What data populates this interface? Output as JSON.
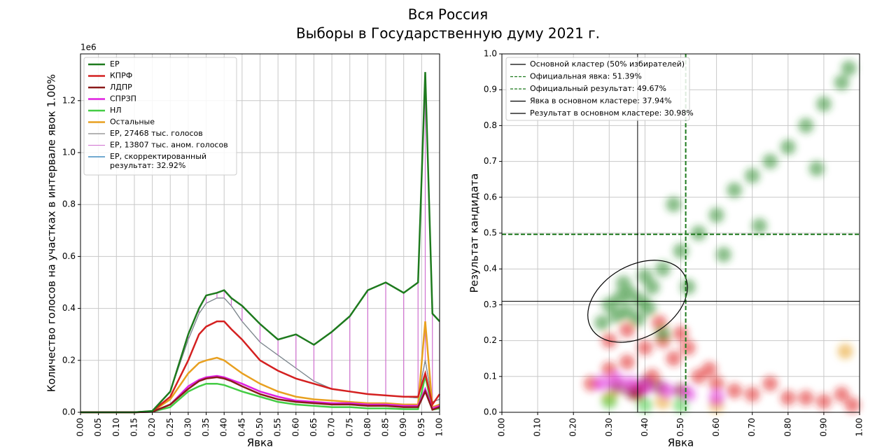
{
  "title": [
    "Вся Россия",
    "Выборы в Государственную думу 2021 г."
  ],
  "chart_data": [
    {
      "type": "line",
      "x_label": "Явка",
      "y_label": "Количество голосов на участках в интервале явок 1.00%",
      "y_offset_label": "1e6",
      "x": [
        0,
        0.05,
        0.1,
        0.15,
        0.2,
        0.25,
        0.3,
        0.33,
        0.35,
        0.38,
        0.4,
        0.42,
        0.45,
        0.5,
        0.55,
        0.6,
        0.65,
        0.7,
        0.75,
        0.8,
        0.85,
        0.9,
        0.94,
        0.96,
        0.98,
        1.0
      ],
      "xlim": [
        0,
        1
      ],
      "xticks": [
        {
          "value": 0,
          "label": "0.00"
        },
        {
          "value": 0.05,
          "label": "0.05"
        },
        {
          "value": 0.1,
          "label": "0.10"
        },
        {
          "value": 0.15,
          "label": "0.15"
        },
        {
          "value": 0.2,
          "label": "0.20"
        },
        {
          "value": 0.25,
          "label": "0.25"
        },
        {
          "value": 0.3,
          "label": "0.30"
        },
        {
          "value": 0.35,
          "label": "0.35"
        },
        {
          "value": 0.4,
          "label": "0.40"
        },
        {
          "value": 0.45,
          "label": "0.45"
        },
        {
          "value": 0.5,
          "label": "0.50"
        },
        {
          "value": 0.55,
          "label": "0.55"
        },
        {
          "value": 0.6,
          "label": "0.60"
        },
        {
          "value": 0.65,
          "label": "0.65"
        },
        {
          "value": 0.7,
          "label": "0.70"
        },
        {
          "value": 0.75,
          "label": "0.75"
        },
        {
          "value": 0.8,
          "label": "0.80"
        },
        {
          "value": 0.85,
          "label": "0.85"
        },
        {
          "value": 0.9,
          "label": "0.90"
        },
        {
          "value": 0.95,
          "label": "0.95"
        },
        {
          "value": 1,
          "label": "1.00"
        }
      ],
      "ylim": [
        0,
        1.38
      ],
      "yticks": [
        {
          "value": 0,
          "label": "0.0"
        },
        {
          "value": 0.2,
          "label": "0.2"
        },
        {
          "value": 0.4,
          "label": "0.4"
        },
        {
          "value": 0.6,
          "label": "0.6"
        },
        {
          "value": 0.8,
          "label": "0.8"
        },
        {
          "value": 1,
          "label": "1.0"
        },
        {
          "value": 1.2,
          "label": "1.2"
        }
      ],
      "grid": true,
      "series": [
        {
          "name": "ЕР",
          "color": "#1e7a1e",
          "width": 2.5,
          "values": [
            0,
            0,
            0,
            0,
            0.005,
            0.08,
            0.3,
            0.4,
            0.45,
            0.46,
            0.47,
            0.44,
            0.41,
            0.34,
            0.28,
            0.3,
            0.26,
            0.31,
            0.37,
            0.47,
            0.5,
            0.46,
            0.5,
            1.31,
            0.38,
            0.35
          ]
        },
        {
          "name": "КПРФ",
          "color": "#d42020",
          "width": 2.5,
          "values": [
            0,
            0,
            0,
            0,
            0.004,
            0.06,
            0.2,
            0.3,
            0.33,
            0.35,
            0.35,
            0.32,
            0.28,
            0.2,
            0.16,
            0.13,
            0.11,
            0.09,
            0.08,
            0.07,
            0.065,
            0.06,
            0.06,
            0.15,
            0.03,
            0.07
          ]
        },
        {
          "name": "ЛДПР",
          "color": "#8b1a1a",
          "width": 2.5,
          "values": [
            0,
            0,
            0,
            0,
            0.002,
            0.03,
            0.09,
            0.12,
            0.13,
            0.135,
            0.13,
            0.12,
            0.1,
            0.07,
            0.05,
            0.04,
            0.035,
            0.03,
            0.03,
            0.025,
            0.025,
            0.02,
            0.02,
            0.08,
            0.01,
            0.02
          ]
        },
        {
          "name": "СПРЗП",
          "color": "#e020e0",
          "width": 2.5,
          "values": [
            0,
            0,
            0,
            0,
            0.002,
            0.03,
            0.1,
            0.125,
            0.135,
            0.14,
            0.135,
            0.125,
            0.11,
            0.08,
            0.06,
            0.045,
            0.04,
            0.035,
            0.035,
            0.03,
            0.03,
            0.025,
            0.025,
            0.09,
            0.015,
            0.025
          ]
        },
        {
          "name": "НЛ",
          "color": "#44cc44",
          "width": 2.5,
          "values": [
            0,
            0,
            0,
            0,
            0.002,
            0.02,
            0.08,
            0.1,
            0.11,
            0.11,
            0.105,
            0.095,
            0.08,
            0.06,
            0.04,
            0.03,
            0.025,
            0.02,
            0.02,
            0.015,
            0.015,
            0.012,
            0.012,
            0.14,
            0.01,
            0.015
          ]
        },
        {
          "name": "Остальные",
          "color": "#e8a020",
          "width": 2.5,
          "values": [
            0,
            0,
            0,
            0,
            0.003,
            0.05,
            0.15,
            0.19,
            0.2,
            0.21,
            0.2,
            0.18,
            0.15,
            0.11,
            0.08,
            0.06,
            0.05,
            0.045,
            0.04,
            0.035,
            0.035,
            0.03,
            0.03,
            0.35,
            0.02,
            0.03
          ]
        },
        {
          "name": "ЕР, 27468 тыс. голосов",
          "color": "#888888",
          "width": 1.2,
          "values": [
            0,
            0,
            0,
            0,
            0.005,
            0.08,
            0.28,
            0.38,
            0.42,
            0.44,
            0.44,
            0.41,
            0.35,
            0.27,
            0.22,
            0.17,
            0.12,
            0.09,
            0.08,
            0.07,
            0.065,
            0.06,
            0.055,
            0.2,
            0.04,
            0.05
          ]
        },
        {
          "name": "ЕР, 13807 тыс. аном. голосов",
          "color": "#d070d0",
          "hatch": true,
          "values": [
            0,
            0,
            0,
            0,
            0,
            0,
            0.02,
            0.02,
            0.03,
            0.02,
            0.03,
            0.03,
            0.06,
            0.07,
            0.06,
            0.13,
            0.14,
            0.22,
            0.29,
            0.4,
            0.435,
            0.4,
            0.445,
            1.11,
            0.34,
            0.3
          ]
        },
        {
          "name": "ЕР, скорректированный\nрезультат: 32.92%",
          "color": "#1f77b4",
          "width": 1.2,
          "values": [
            0,
            0,
            0,
            0,
            0.005,
            0.08,
            0.28,
            0.38,
            0.42,
            0.44,
            0.44,
            0.41,
            0.35,
            0.27,
            0.22,
            0.17,
            0.12,
            0.09,
            0.08,
            0.07,
            0.065,
            0.06,
            0.055,
            0.2,
            0.04,
            0.05
          ]
        }
      ]
    },
    {
      "type": "scatter",
      "x_label": "Явка",
      "y_label": "Результат кандидата",
      "xlim": [
        0,
        1
      ],
      "xticks": [
        {
          "value": 0,
          "label": "0.00"
        },
        {
          "value": 0.1,
          "label": "0.10"
        },
        {
          "value": 0.2,
          "label": "0.20"
        },
        {
          "value": 0.3,
          "label": "0.30"
        },
        {
          "value": 0.4,
          "label": "0.40"
        },
        {
          "value": 0.5,
          "label": "0.50"
        },
        {
          "value": 0.6,
          "label": "0.60"
        },
        {
          "value": 0.7,
          "label": "0.70"
        },
        {
          "value": 0.8,
          "label": "0.80"
        },
        {
          "value": 0.9,
          "label": "0.90"
        },
        {
          "value": 1,
          "label": "1.00"
        }
      ],
      "ylim": [
        0,
        1
      ],
      "yticks": [
        {
          "value": 0,
          "label": "0.0"
        },
        {
          "value": 0.1,
          "label": "0.1"
        },
        {
          "value": 0.2,
          "label": "0.2"
        },
        {
          "value": 0.3,
          "label": "0.3"
        },
        {
          "value": 0.4,
          "label": "0.4"
        },
        {
          "value": 0.5,
          "label": "0.5"
        },
        {
          "value": 0.6,
          "label": "0.6"
        },
        {
          "value": 0.7,
          "label": "0.7"
        },
        {
          "value": 0.8,
          "label": "0.8"
        },
        {
          "value": 0.9,
          "label": "0.9"
        },
        {
          "value": 1,
          "label": "1.0"
        }
      ],
      "grid": true,
      "series": [
        {
          "color": "#e02020",
          "x": [
            0.3,
            0.35,
            0.4,
            0.45,
            0.5,
            0.38,
            0.42,
            0.48,
            0.55,
            0.6,
            0.65,
            0.7,
            0.8,
            0.9,
            0.95,
            0.3,
            0.35,
            0.44,
            0.52,
            0.58,
            0.75,
            0.85,
            0.98,
            0.25
          ],
          "values": [
            0.12,
            0.14,
            0.18,
            0.2,
            0.22,
            0.06,
            0.1,
            0.15,
            0.1,
            0.08,
            0.06,
            0.05,
            0.04,
            0.03,
            0.05,
            0.2,
            0.23,
            0.25,
            0.18,
            0.12,
            0.08,
            0.04,
            0.02,
            0.08
          ]
        },
        {
          "color": "#e8a020",
          "x": [
            0.3,
            0.45,
            0.6,
            0.96
          ],
          "values": [
            0.04,
            0.03,
            0.02,
            0.17
          ]
        },
        {
          "color": "#8b1a1a",
          "x": [
            0.32,
            0.36,
            0.4,
            0.44,
            0.38,
            0.5
          ],
          "values": [
            0.07,
            0.06,
            0.08,
            0.07,
            0.05,
            0.06
          ]
        },
        {
          "color": "#e020e0",
          "x": [
            0.28,
            0.32,
            0.36,
            0.4,
            0.46,
            0.52,
            0.6
          ],
          "values": [
            0.08,
            0.09,
            0.08,
            0.07,
            0.06,
            0.05,
            0.04
          ]
        },
        {
          "color": "#44cc44",
          "x": [
            0.3,
            0.4,
            0.5
          ],
          "values": [
            0.03,
            0.02,
            0.02
          ]
        },
        {
          "color": "#2a8a2a",
          "x": [
            0.3,
            0.33,
            0.36,
            0.39,
            0.42,
            0.32,
            0.35,
            0.38,
            0.41,
            0.28,
            0.34,
            0.4,
            0.45,
            0.5,
            0.55,
            0.48,
            0.6,
            0.65,
            0.7,
            0.75,
            0.8,
            0.85,
            0.9,
            0.95,
            0.97,
            0.62,
            0.72,
            0.88,
            0.45,
            0.52
          ],
          "values": [
            0.3,
            0.32,
            0.33,
            0.31,
            0.35,
            0.27,
            0.28,
            0.26,
            0.29,
            0.25,
            0.36,
            0.38,
            0.4,
            0.45,
            0.5,
            0.58,
            0.55,
            0.62,
            0.66,
            0.7,
            0.74,
            0.8,
            0.86,
            0.92,
            0.96,
            0.44,
            0.52,
            0.68,
            0.22,
            0.35
          ]
        }
      ],
      "cluster": {
        "name": "Основной кластер (50% избирателей)",
        "color": "#000000",
        "center": [
          0.3794,
          0.3098
        ],
        "radii": [
          0.15,
          0.1
        ],
        "angle": 30
      },
      "lines": [
        {
          "name": "Официальная явка: 51.39%",
          "orient": "v",
          "value": 0.5139,
          "color": "#1e7a1e",
          "dashed": true
        },
        {
          "name": "Официальный результат: 49.67%",
          "orient": "h",
          "value": 0.4967,
          "color": "#1e7a1e",
          "dashed": true
        },
        {
          "name": "Явка в основном кластере: 37.94%",
          "orient": "v",
          "value": 0.3794,
          "color": "#000000",
          "dashed": false
        },
        {
          "name": "Результат в основном кластере: 30.98%",
          "orient": "h",
          "value": 0.3098,
          "color": "#000000",
          "dashed": false
        }
      ]
    }
  ]
}
